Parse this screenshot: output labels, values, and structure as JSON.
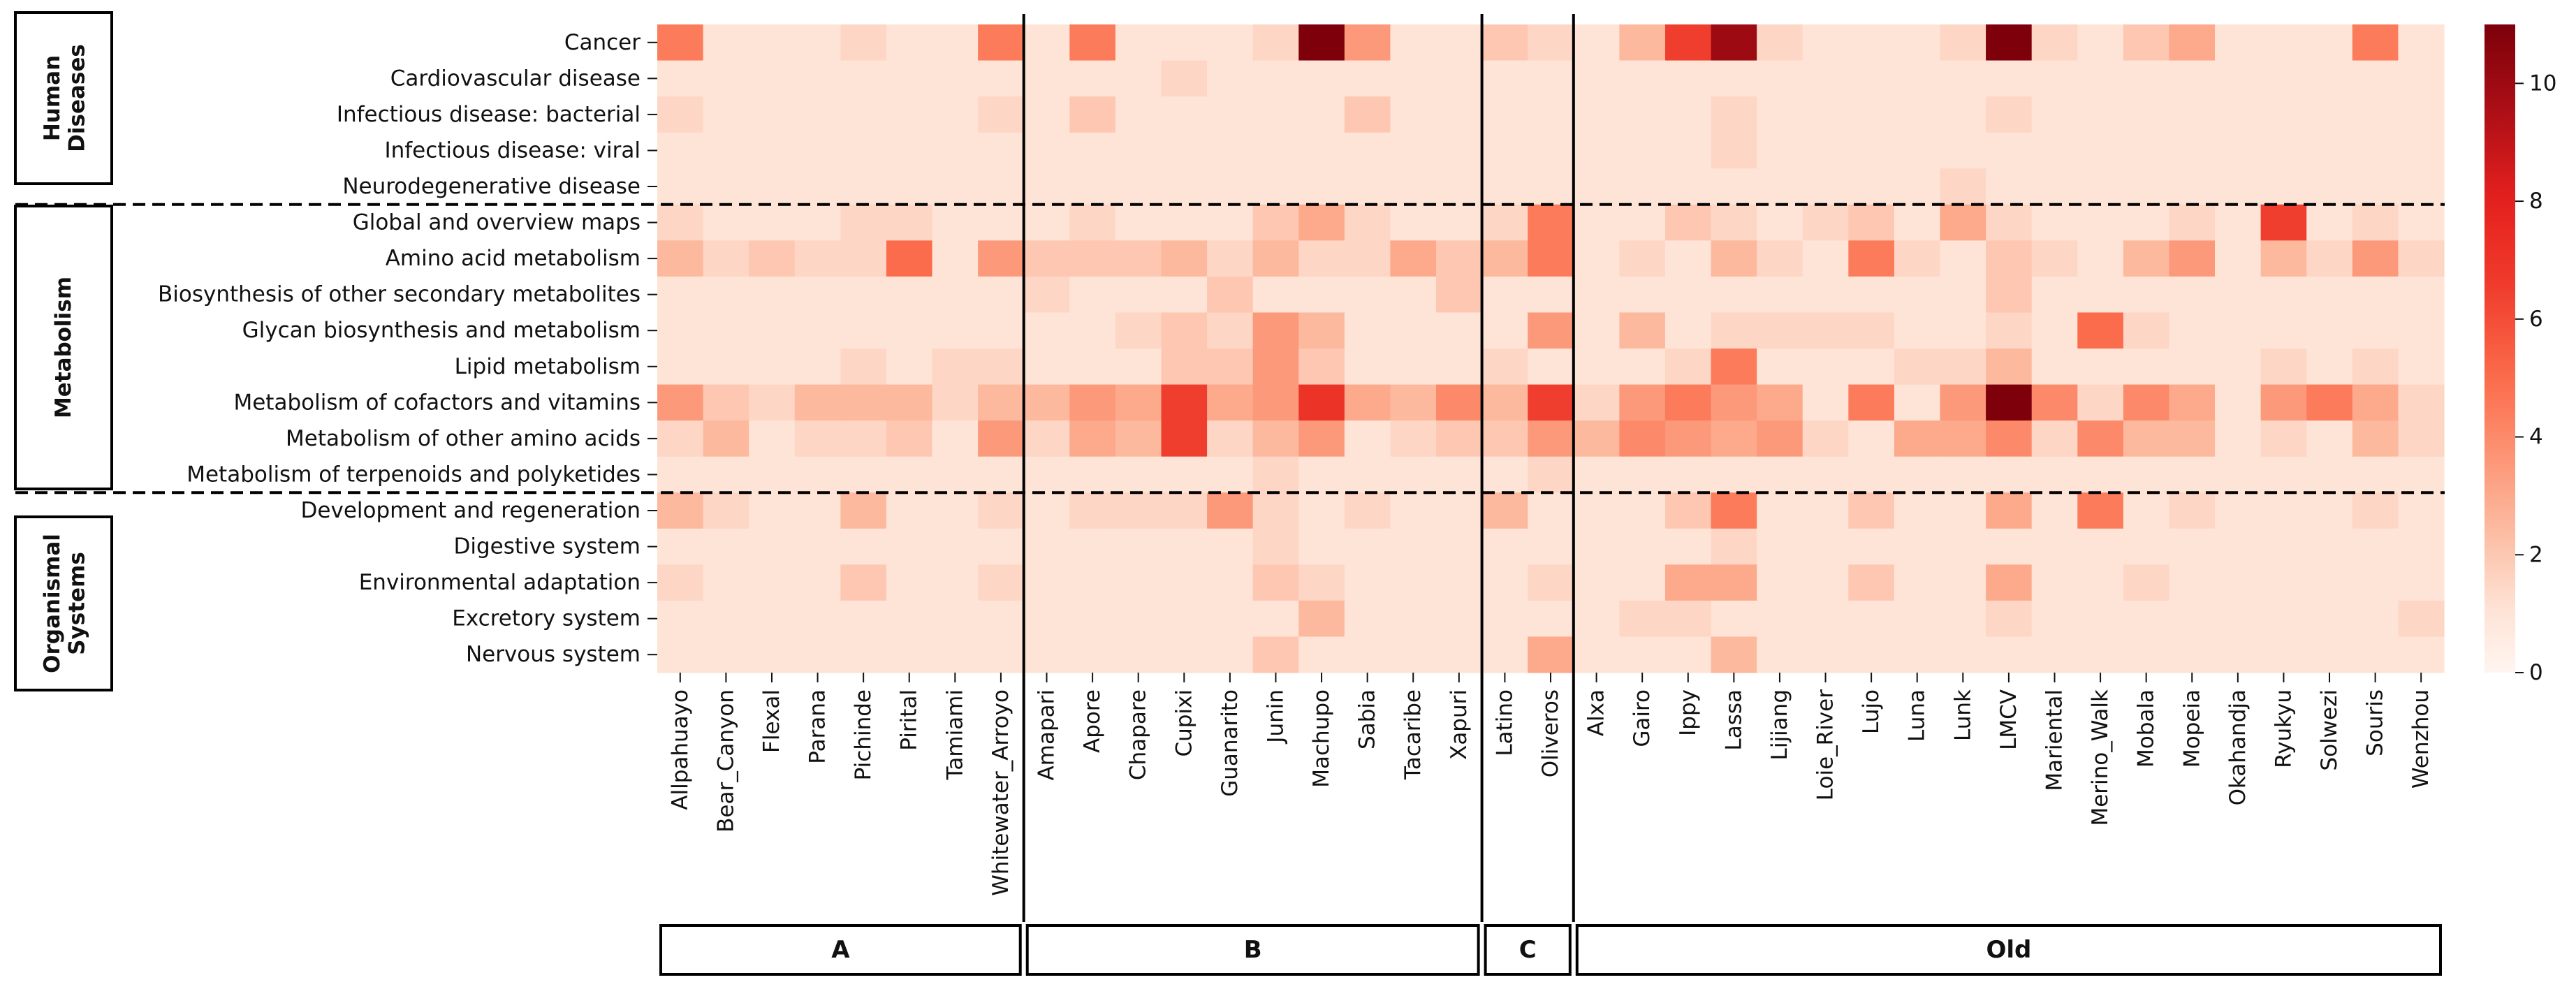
{
  "chart_data": {
    "type": "heatmap",
    "title": "",
    "colorbar": {
      "min": 0,
      "max": 11,
      "ticks": [
        0,
        2,
        4,
        6,
        8,
        10
      ]
    },
    "categories": [
      {
        "label": "Human Diseases",
        "rows": 5
      },
      {
        "label": "Metabolism",
        "rows": 8
      },
      {
        "label": "Organismal Systems",
        "rows": 5
      }
    ],
    "rows": [
      "Cancer",
      "Cardiovascular disease",
      "Infectious disease: bacterial",
      "Infectious disease: viral",
      "Neurodegenerative disease",
      "Global and overview maps",
      "Amino acid metabolism",
      "Biosynthesis of other secondary metabolites",
      "Glycan biosynthesis and metabolism",
      "Lipid metabolism",
      "Metabolism of cofactors and vitamins",
      "Metabolism of other amino acids",
      "Metabolism of terpenoids and polyketides",
      "Development and regeneration",
      "Digestive system",
      "Environmental adaptation",
      "Excretory system",
      "Nervous system"
    ],
    "columns": [
      "Allpahuayo",
      "Bear_Canyon",
      "Flexal",
      "Parana",
      "Pichinde",
      "Pirital",
      "Tamiami",
      "Whitewater_Arroyo",
      "Amapari",
      "Apore",
      "Chapare",
      "Cupixi",
      "Guanarito",
      "Junin",
      "Machupo",
      "Sabia",
      "Tacaribe",
      "Xapuri",
      "Latino",
      "Oliveros",
      "Alxa",
      "Gairo",
      "Ippy",
      "Lassa",
      "Lijiang",
      "Loie_River",
      "Lujo",
      "Luna",
      "Lunk",
      "LMCV",
      "Mariental",
      "Merino_Walk",
      "Mobala",
      "Mopeia",
      "Okahandja",
      "Ryukyu",
      "Solwezi",
      "Souris",
      "Wenzhou"
    ],
    "groups": [
      {
        "label": "A",
        "columns": 8
      },
      {
        "label": "B",
        "columns": 10
      },
      {
        "label": "C",
        "columns": 2
      },
      {
        "label": "Old",
        "columns": 19
      }
    ],
    "values": [
      [
        4.5,
        1.0,
        1.0,
        1.0,
        1.5,
        1.0,
        1.0,
        4.5,
        1.0,
        4.5,
        1.0,
        1.0,
        1.0,
        1.5,
        11.0,
        3.5,
        1.0,
        1.0,
        2.0,
        1.5,
        1.0,
        2.5,
        6.5,
        10.0,
        1.5,
        1.0,
        1.0,
        1.0,
        1.5,
        11.0,
        1.5,
        1.0,
        2.0,
        3.0,
        1.0,
        1.0,
        1.0,
        4.5,
        1.0
      ],
      [
        1.0,
        1.0,
        1.0,
        1.0,
        1.0,
        1.0,
        1.0,
        1.0,
        1.0,
        1.0,
        1.0,
        1.5,
        1.0,
        1.0,
        1.0,
        1.0,
        1.0,
        1.0,
        1.0,
        1.0,
        1.0,
        1.0,
        1.0,
        1.0,
        1.0,
        1.0,
        1.0,
        1.0,
        1.0,
        1.0,
        1.0,
        1.0,
        1.0,
        1.0,
        1.0,
        1.0,
        1.0,
        1.0,
        1.0
      ],
      [
        1.5,
        1.0,
        1.0,
        1.0,
        1.0,
        1.0,
        1.0,
        1.5,
        1.0,
        2.0,
        1.0,
        1.0,
        1.0,
        1.0,
        1.0,
        2.0,
        1.0,
        1.0,
        1.0,
        1.0,
        1.0,
        1.0,
        1.0,
        1.5,
        1.0,
        1.0,
        1.0,
        1.0,
        1.0,
        1.5,
        1.0,
        1.0,
        1.0,
        1.0,
        1.0,
        1.0,
        1.0,
        1.0,
        1.0
      ],
      [
        1.0,
        1.0,
        1.0,
        1.0,
        1.0,
        1.0,
        1.0,
        1.0,
        1.0,
        1.0,
        1.0,
        1.0,
        1.0,
        1.0,
        1.0,
        1.0,
        1.0,
        1.0,
        1.0,
        1.0,
        1.0,
        1.0,
        1.0,
        1.5,
        1.0,
        1.0,
        1.0,
        1.0,
        1.0,
        1.0,
        1.0,
        1.0,
        1.0,
        1.0,
        1.0,
        1.0,
        1.0,
        1.0,
        1.0
      ],
      [
        1.0,
        1.0,
        1.0,
        1.0,
        1.0,
        1.0,
        1.0,
        1.0,
        1.0,
        1.0,
        1.0,
        1.0,
        1.0,
        1.0,
        1.0,
        1.0,
        1.0,
        1.0,
        1.0,
        1.0,
        1.0,
        1.0,
        1.0,
        1.0,
        1.0,
        1.0,
        1.0,
        1.0,
        1.5,
        1.0,
        1.0,
        1.0,
        1.0,
        1.0,
        1.0,
        1.0,
        1.0,
        1.0,
        1.0
      ],
      [
        1.5,
        1.0,
        1.0,
        1.0,
        1.5,
        1.5,
        1.0,
        1.0,
        1.0,
        1.5,
        1.0,
        1.0,
        1.0,
        2.0,
        3.0,
        1.5,
        1.0,
        1.0,
        1.5,
        4.5,
        1.0,
        1.0,
        2.0,
        1.5,
        1.0,
        1.5,
        2.0,
        1.0,
        3.0,
        1.5,
        1.0,
        1.0,
        1.0,
        1.5,
        1.0,
        6.5,
        1.0,
        1.5,
        1.0
      ],
      [
        2.5,
        1.5,
        2.0,
        1.5,
        1.5,
        5.0,
        1.0,
        3.5,
        2.0,
        2.0,
        2.0,
        2.5,
        1.5,
        2.5,
        1.5,
        1.5,
        3.0,
        2.0,
        2.5,
        4.5,
        1.0,
        1.5,
        1.0,
        2.5,
        1.5,
        1.0,
        4.5,
        1.5,
        1.0,
        2.0,
        1.5,
        1.0,
        2.5,
        3.5,
        1.0,
        2.5,
        1.5,
        3.5,
        1.5
      ],
      [
        1.0,
        1.0,
        1.0,
        1.0,
        1.0,
        1.0,
        1.0,
        1.0,
        1.5,
        1.0,
        1.0,
        1.0,
        2.0,
        1.0,
        1.0,
        1.0,
        1.0,
        2.0,
        1.0,
        1.0,
        1.0,
        1.0,
        1.0,
        1.0,
        1.0,
        1.0,
        1.0,
        1.0,
        1.0,
        2.0,
        1.0,
        1.0,
        1.0,
        1.0,
        1.0,
        1.0,
        1.0,
        1.0,
        1.0
      ],
      [
        1.0,
        1.0,
        1.0,
        1.0,
        1.0,
        1.0,
        1.0,
        1.0,
        1.0,
        1.0,
        1.5,
        2.0,
        1.5,
        3.5,
        2.5,
        1.0,
        1.0,
        1.0,
        1.0,
        3.5,
        1.0,
        2.5,
        1.0,
        1.5,
        1.5,
        1.5,
        1.5,
        1.0,
        1.0,
        1.5,
        1.0,
        5.0,
        1.5,
        1.0,
        1.0,
        1.0,
        1.0,
        1.0,
        1.0
      ],
      [
        1.0,
        1.0,
        1.0,
        1.0,
        1.5,
        1.0,
        1.5,
        1.5,
        1.0,
        1.0,
        1.0,
        2.0,
        2.0,
        3.5,
        2.0,
        1.0,
        1.0,
        1.0,
        1.5,
        1.0,
        1.0,
        1.0,
        1.5,
        4.5,
        1.0,
        1.0,
        1.0,
        1.5,
        1.5,
        2.5,
        1.0,
        1.0,
        1.0,
        1.0,
        1.0,
        1.5,
        1.0,
        1.5,
        1.0
      ],
      [
        3.5,
        2.0,
        1.5,
        2.5,
        2.5,
        2.5,
        1.5,
        2.5,
        2.5,
        3.5,
        3.0,
        6.5,
        3.0,
        3.5,
        7.0,
        3.0,
        2.5,
        4.0,
        2.5,
        6.5,
        1.5,
        3.5,
        4.5,
        3.5,
        3.0,
        1.0,
        4.5,
        1.0,
        3.5,
        11.0,
        4.0,
        1.5,
        4.0,
        3.0,
        1.0,
        3.5,
        4.5,
        3.0,
        1.5
      ],
      [
        1.5,
        2.5,
        1.0,
        1.5,
        1.5,
        2.0,
        1.0,
        3.5,
        1.5,
        3.0,
        2.5,
        6.5,
        1.5,
        2.5,
        3.5,
        1.0,
        1.5,
        2.0,
        2.0,
        3.5,
        2.5,
        4.0,
        3.5,
        3.0,
        3.5,
        1.5,
        1.0,
        3.0,
        3.0,
        4.0,
        1.5,
        4.0,
        2.5,
        2.5,
        1.0,
        1.5,
        1.0,
        2.5,
        1.5
      ],
      [
        1.0,
        1.0,
        1.0,
        1.0,
        1.0,
        1.0,
        1.0,
        1.0,
        1.0,
        1.0,
        1.0,
        1.0,
        1.0,
        1.5,
        1.0,
        1.0,
        1.0,
        1.0,
        1.0,
        1.5,
        1.0,
        1.0,
        1.0,
        1.0,
        1.0,
        1.0,
        1.0,
        1.0,
        1.0,
        1.0,
        1.0,
        1.0,
        1.0,
        1.0,
        1.0,
        1.0,
        1.0,
        1.0,
        1.0
      ],
      [
        2.5,
        1.5,
        1.0,
        1.0,
        2.5,
        1.0,
        1.0,
        1.5,
        1.0,
        1.5,
        1.5,
        1.5,
        3.5,
        1.5,
        1.0,
        1.5,
        1.0,
        1.0,
        2.5,
        1.0,
        1.0,
        1.0,
        2.0,
        4.5,
        1.0,
        1.0,
        2.0,
        1.0,
        1.0,
        3.0,
        1.0,
        4.5,
        1.0,
        1.5,
        1.0,
        1.0,
        1.0,
        1.5,
        1.0
      ],
      [
        1.0,
        1.0,
        1.0,
        1.0,
        1.0,
        1.0,
        1.0,
        1.0,
        1.0,
        1.0,
        1.0,
        1.0,
        1.0,
        1.5,
        1.0,
        1.0,
        1.0,
        1.0,
        1.0,
        1.0,
        1.0,
        1.0,
        1.0,
        1.5,
        1.0,
        1.0,
        1.0,
        1.0,
        1.0,
        1.0,
        1.0,
        1.0,
        1.0,
        1.0,
        1.0,
        1.0,
        1.0,
        1.0,
        1.0
      ],
      [
        1.5,
        1.0,
        1.0,
        1.0,
        2.0,
        1.0,
        1.0,
        1.5,
        1.0,
        1.0,
        1.0,
        1.0,
        1.0,
        2.0,
        1.5,
        1.0,
        1.0,
        1.0,
        1.0,
        1.5,
        1.0,
        1.0,
        3.0,
        3.0,
        1.0,
        1.0,
        2.0,
        1.0,
        1.0,
        3.0,
        1.0,
        1.0,
        1.5,
        1.0,
        1.0,
        1.0,
        1.0,
        1.0,
        1.0
      ],
      [
        1.0,
        1.0,
        1.0,
        1.0,
        1.0,
        1.0,
        1.0,
        1.0,
        1.0,
        1.0,
        1.0,
        1.0,
        1.0,
        1.0,
        2.5,
        1.0,
        1.0,
        1.0,
        1.0,
        1.0,
        1.0,
        1.5,
        1.5,
        1.0,
        1.0,
        1.0,
        1.0,
        1.0,
        1.0,
        1.5,
        1.0,
        1.0,
        1.0,
        1.0,
        1.0,
        1.0,
        1.0,
        1.0,
        1.5
      ],
      [
        1.0,
        1.0,
        1.0,
        1.0,
        1.0,
        1.0,
        1.0,
        1.0,
        1.0,
        1.0,
        1.0,
        1.0,
        1.0,
        2.0,
        1.0,
        1.0,
        1.0,
        1.0,
        1.0,
        3.0,
        1.0,
        1.0,
        1.0,
        2.5,
        1.0,
        1.0,
        1.0,
        1.0,
        1.0,
        1.0,
        1.0,
        1.0,
        1.0,
        1.0,
        1.0,
        1.0,
        1.0,
        1.0,
        1.0
      ]
    ]
  }
}
